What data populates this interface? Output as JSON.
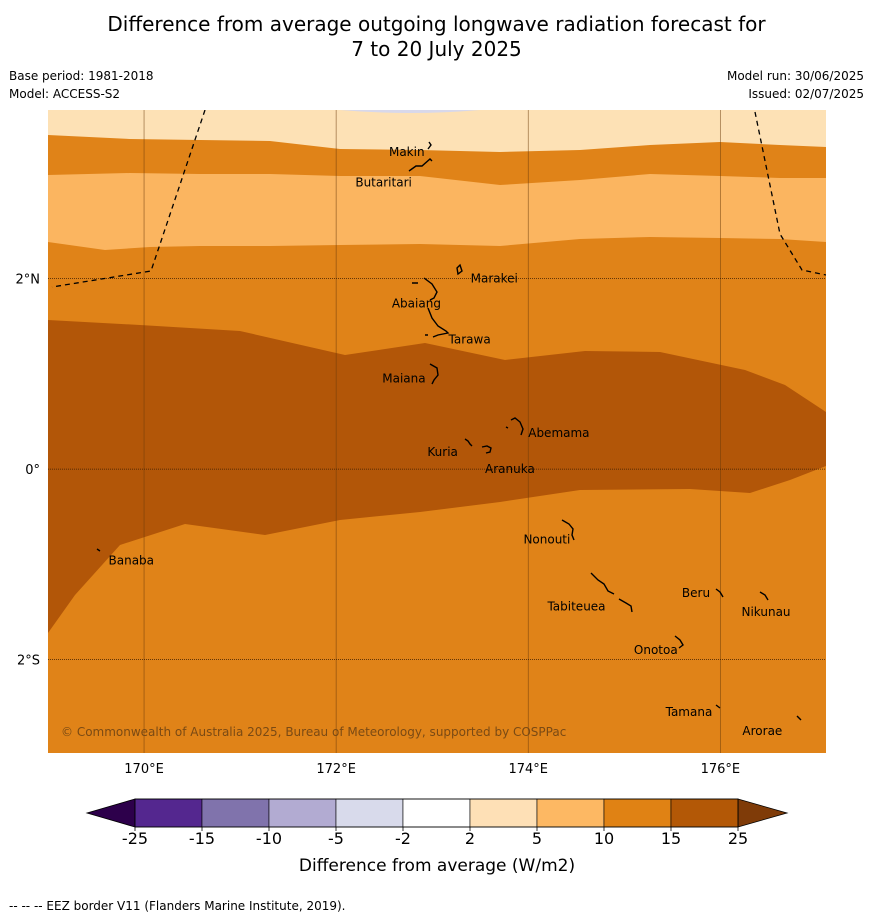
{
  "title_line1": "Difference from average outgoing longwave radiation forecast for",
  "title_line2": "7 to 20 July 2025",
  "base_period": "Base period: 1981-2018",
  "model": "Model: ACCESS-S2",
  "model_run": "Model run: 30/06/2025",
  "issued": "Issued: 02/07/2025",
  "copyright": "© Commonwealth of Australia 2025, Bureau of Meteorology, supported by COSPPac",
  "footer": "--  --  -- EEZ border V11 (Flanders Marine Institute, 2019).",
  "colorbar_label": "Difference from average (W/m2)",
  "map": {
    "lon_range": [
      169,
      177.1
    ],
    "lat_range": [
      -2.98,
      3.77
    ],
    "lon_ticks": [
      {
        "value": 170,
        "label": "170°E"
      },
      {
        "value": 172,
        "label": "172°E"
      },
      {
        "value": 174,
        "label": "174°E"
      },
      {
        "value": 176,
        "label": "176°E"
      }
    ],
    "lat_ticks": [
      {
        "value": 2,
        "label": "2°N"
      },
      {
        "value": 0,
        "label": "0°"
      },
      {
        "value": -2,
        "label": "2°S"
      }
    ],
    "colors": {
      "ocean_2_5": "#fde1b5",
      "ocean_5_10": "#fbb560",
      "ocean_10_15": "#e08318",
      "ocean_15_25": "#b25608",
      "neg_2_5": "#d8d8ea"
    },
    "places": [
      {
        "name": "Makin",
        "lon": 172.55,
        "lat": 3.33
      },
      {
        "name": "Butaritari",
        "lon": 172.2,
        "lat": 3.01
      },
      {
        "name": "Marakei",
        "lon": 173.4,
        "lat": 2.0
      },
      {
        "name": "Abaiang",
        "lon": 172.58,
        "lat": 1.74
      },
      {
        "name": "Tarawa",
        "lon": 173.17,
        "lat": 1.36
      },
      {
        "name": "Maiana",
        "lon": 172.48,
        "lat": 0.95
      },
      {
        "name": "Abemama",
        "lon": 174.0,
        "lat": 0.38
      },
      {
        "name": "Kuria",
        "lon": 172.95,
        "lat": 0.18
      },
      {
        "name": "Aranuka",
        "lon": 173.55,
        "lat": 0.0
      },
      {
        "name": "Nonouti",
        "lon": 173.95,
        "lat": -0.74
      },
      {
        "name": "Banaba",
        "lon": 169.63,
        "lat": -0.96
      },
      {
        "name": "Tabiteuea",
        "lon": 174.2,
        "lat": -1.44
      },
      {
        "name": "Beru",
        "lon": 175.6,
        "lat": -1.3
      },
      {
        "name": "Nikunau",
        "lon": 176.22,
        "lat": -1.5
      },
      {
        "name": "Onotoa",
        "lon": 175.1,
        "lat": -1.9
      },
      {
        "name": "Tamana",
        "lon": 175.43,
        "lat": -2.55
      },
      {
        "name": "Arorae",
        "lon": 176.23,
        "lat": -2.75
      }
    ]
  },
  "colorbar": {
    "bins": [
      {
        "from": -25,
        "to": -15,
        "color": "#54278f"
      },
      {
        "from": -15,
        "to": -10,
        "color": "#8073ac"
      },
      {
        "from": -10,
        "to": -5,
        "color": "#b2abd2"
      },
      {
        "from": -5,
        "to": -2,
        "color": "#d8daeb"
      },
      {
        "from": -2,
        "to": 2,
        "color": "#ffffff"
      },
      {
        "from": 2,
        "to": 5,
        "color": "#fee0b6"
      },
      {
        "from": 5,
        "to": 10,
        "color": "#fdb863"
      },
      {
        "from": 10,
        "to": 15,
        "color": "#e08214"
      },
      {
        "from": 15,
        "to": 25,
        "color": "#b35806"
      }
    ],
    "below_color": "#2d004b",
    "above_color": "#7f3b08",
    "tick_labels": [
      "-25",
      "-15",
      "-10",
      "-5",
      "-2",
      "2",
      "5",
      "10",
      "15",
      "25"
    ]
  }
}
